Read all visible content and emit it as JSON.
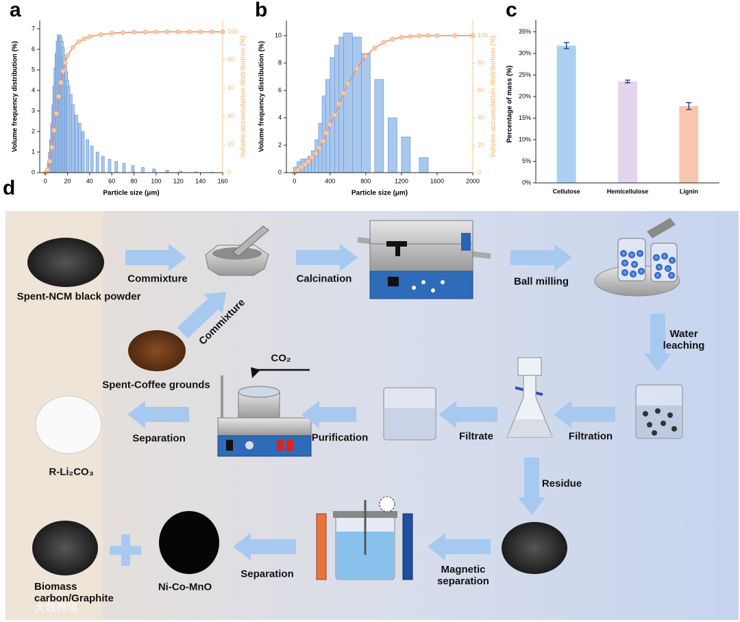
{
  "chart_data": [
    {
      "type": "bar",
      "panel_label": "a",
      "x_label": "Particle size (μm)",
      "y_label": "Volume frequency distribution (%)",
      "y2_label": "Volume accumulation distribution (%)",
      "xlim": [
        -5,
        160
      ],
      "xticks": [
        0,
        20,
        40,
        60,
        80,
        100,
        120,
        140,
        160
      ],
      "ylim": [
        0,
        7.4
      ],
      "yticks": [
        0,
        1,
        2,
        3,
        4,
        5,
        6,
        7
      ],
      "y2lim": [
        0,
        108
      ],
      "y2ticks": [
        0,
        20,
        40,
        60,
        80,
        100
      ],
      "series": [
        {
          "color": "#a9c8ee",
          "x": [
            2,
            3,
            4,
            5,
            6,
            7,
            8,
            9,
            10,
            11,
            12,
            13,
            14,
            15,
            16,
            17,
            18,
            19,
            20,
            21,
            23,
            25,
            28,
            31,
            34,
            38,
            42,
            47,
            52,
            58,
            64,
            71,
            79,
            88,
            98,
            110,
            122,
            136,
            150
          ],
          "values": [
            0.2,
            0.5,
            1.0,
            1.6,
            2.4,
            3.3,
            4.2,
            5.1,
            5.8,
            6.4,
            6.7,
            6.7,
            6.6,
            6.4,
            6.1,
            5.7,
            5.3,
            4.9,
            4.5,
            4.2,
            3.8,
            3.3,
            2.8,
            2.4,
            2.0,
            1.6,
            1.3,
            1.0,
            0.8,
            0.65,
            0.55,
            0.45,
            0.35,
            0.25,
            0.18,
            0.12,
            0.07,
            0.04,
            0.02
          ]
        },
        {
          "color": "#e8857f",
          "marker_color": "#f9cba2",
          "axis": "y2",
          "x": [
            0,
            2,
            4,
            6,
            8,
            10,
            12,
            14,
            16,
            18,
            20,
            25,
            30,
            35,
            40,
            50,
            60,
            70,
            80,
            90,
            100,
            110,
            120,
            130,
            140,
            150,
            160
          ],
          "values": [
            0,
            2,
            8,
            18,
            30,
            42,
            54,
            64,
            72,
            78,
            83,
            89,
            93,
            95,
            96.5,
            98,
            99,
            99.4,
            99.7,
            99.8,
            99.9,
            100,
            100,
            100,
            100,
            100,
            100
          ]
        }
      ]
    },
    {
      "type": "bar",
      "panel_label": "b",
      "x_label": "Particle size (μm)",
      "y_label": "Volume frequency distribution (%)",
      "y2_label": "Volume accumulation distribution (%)",
      "xlim": [
        -90,
        2000
      ],
      "xticks": [
        0,
        400,
        800,
        1200,
        1600,
        2000
      ],
      "ylim": [
        0,
        11.1
      ],
      "yticks": [
        0,
        2,
        4,
        6,
        8,
        10
      ],
      "y2lim": [
        0,
        111
      ],
      "y2ticks": [
        0,
        20,
        40,
        60,
        80,
        100
      ],
      "series": [
        {
          "color": "#a9c8ee",
          "x": [
            40,
            80,
            120,
            160,
            200,
            240,
            280,
            320,
            360,
            400,
            450,
            500,
            550,
            600,
            700,
            800,
            950,
            1100,
            1250,
            1450
          ],
          "values": [
            0.4,
            0.8,
            1.0,
            1.0,
            1.2,
            1.6,
            2.4,
            3.6,
            5.6,
            6.8,
            8.4,
            9.3,
            9.9,
            10.2,
            9.9,
            8.7,
            6.8,
            4.0,
            2.6,
            1.1
          ]
        },
        {
          "color": "#e8857f",
          "marker_color": "#f9cba2",
          "axis": "y2",
          "x": [
            0,
            40,
            80,
            120,
            160,
            200,
            240,
            280,
            320,
            360,
            400,
            450,
            500,
            550,
            600,
            700,
            800,
            900,
            1000,
            1100,
            1200,
            1300,
            1400,
            1500,
            1600,
            1800,
            2000
          ],
          "values": [
            0,
            2,
            4,
            6,
            8,
            11,
            14,
            18,
            23,
            29,
            35,
            42,
            50,
            58,
            65,
            76,
            85,
            91,
            95,
            97.5,
            98.8,
            99.4,
            99.8,
            100,
            100,
            100,
            100
          ]
        }
      ]
    },
    {
      "type": "category_bar",
      "panel_label": "c",
      "y_label": "Percentage of mass (%)",
      "categories": [
        "Cellulose",
        "Hemicellulose",
        "Lignin"
      ],
      "values": [
        31.8,
        23.5,
        17.8
      ],
      "errors": [
        0.7,
        0.3,
        0.8
      ],
      "colors": [
        "#acd0f1",
        "#e4d4ec",
        "#f8c6ad"
      ],
      "ylim": [
        0,
        36.5
      ],
      "yticks": [
        {
          "value": 0,
          "label": "0%"
        },
        {
          "value": 5,
          "label": "5%"
        },
        {
          "value": 10,
          "label": "10%"
        },
        {
          "value": 15,
          "label": "15%"
        },
        {
          "value": 20,
          "label": "20%"
        },
        {
          "value": 25,
          "label": "25%"
        },
        {
          "value": 30,
          "label": "30%"
        },
        {
          "value": 35,
          "label": "35%"
        }
      ]
    }
  ],
  "diagram": {
    "panel_label": "d",
    "nodes": [
      {
        "label": "Spent-NCM black powder"
      },
      {
        "label": "Spent-Coffee grounds"
      },
      {
        "label": "R-Li₂CO₃"
      },
      {
        "label": "Ni-Co-MnO"
      },
      {
        "label": "Biomass carbon/Graphite"
      }
    ],
    "steps": [
      {
        "label": "Commixture"
      },
      {
        "label": "Calcination"
      },
      {
        "label": "Ball milling"
      },
      {
        "label": "Water leaching"
      },
      {
        "label": "Commixture"
      },
      {
        "label": "Filtration"
      },
      {
        "label": "Filtrate"
      },
      {
        "label": "Purification"
      },
      {
        "label": "Separation"
      },
      {
        "label": "Residue"
      },
      {
        "label": "Magnetic separation"
      },
      {
        "label": "Separation"
      }
    ],
    "gas": "CO₂",
    "watermark": "大数跨境"
  }
}
